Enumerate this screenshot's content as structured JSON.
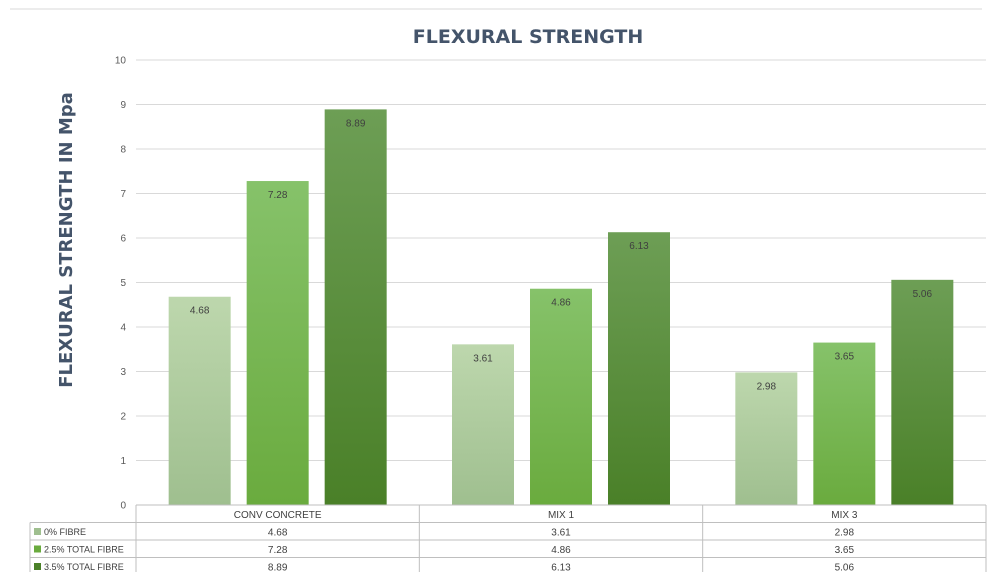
{
  "chart_data": {
    "type": "bar",
    "title": "FLEXURAL STRENGTH",
    "ylabel": "FLEXURAL STRENGTH IN Mpa",
    "xlabel": "",
    "ylim": [
      0,
      10
    ],
    "yticks": [
      "0",
      "1",
      "2",
      "3",
      "4",
      "5",
      "6",
      "7",
      "8",
      "9",
      "10"
    ],
    "categories": [
      "CONV CONCRETE",
      "MIX 1",
      "MIX 3"
    ],
    "series": [
      {
        "name": "0% FIBRE",
        "values": [
          4.68,
          3.61,
          2.98
        ],
        "labels": [
          "4.68",
          "3.61",
          "2.98"
        ],
        "color_top": "#bdd7ad",
        "color_bottom": "#9fbf8f"
      },
      {
        "name": "2.5% TOTAL FIBRE",
        "values": [
          7.28,
          4.86,
          3.65
        ],
        "labels": [
          "7.28",
          "4.86",
          "3.65"
        ],
        "color_top": "#86c26a",
        "color_bottom": "#6aab3e"
      },
      {
        "name": "3.5% TOTAL FIBRE",
        "values": [
          8.89,
          6.13,
          5.06
        ],
        "labels": [
          "8.89",
          "6.13",
          "5.06"
        ],
        "color_top": "#6d9e55",
        "color_bottom": "#4a8028"
      }
    ],
    "legend": "data-table-below",
    "grid": true
  }
}
